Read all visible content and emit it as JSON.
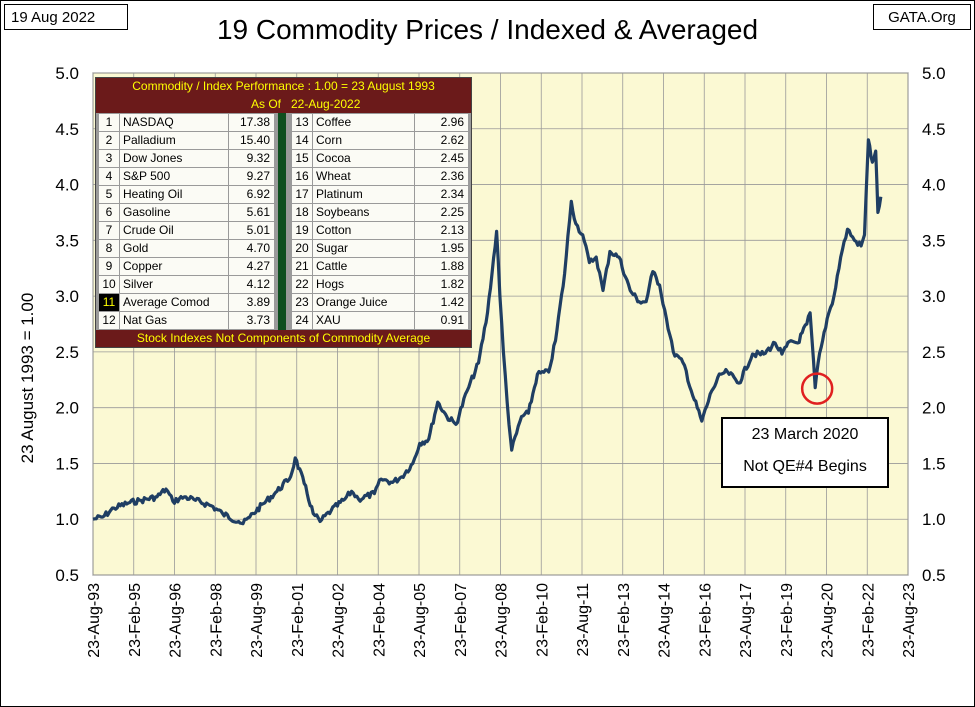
{
  "header": {
    "date_box": "19 Aug 2022",
    "site_box": "GATA.Org",
    "title": "19 Commodity Prices / Indexed & Averaged"
  },
  "colors": {
    "plot_background": "#fbf9d3",
    "line": "#1f3e63",
    "table_header_bg": "#6b1a1a",
    "table_header_text": "#ffff00",
    "separator": "#0e4f1f",
    "circle": "#e02020"
  },
  "table": {
    "header": "Commodity / Index Performance : 1.00 = 23 August 1993",
    "asof_label": "As Of",
    "asof_date": "22-Aug-2022",
    "footer": "Stock Indexes Not Components of Commodity Average",
    "rows": [
      {
        "rank": "1",
        "name": "NASDAQ",
        "value": "17.38",
        "rank2": "13",
        "name2": "Coffee",
        "value2": "2.96"
      },
      {
        "rank": "2",
        "name": "Palladium",
        "value": "15.40",
        "rank2": "14",
        "name2": "Corn",
        "value2": "2.62"
      },
      {
        "rank": "3",
        "name": "Dow Jones",
        "value": "9.32",
        "rank2": "15",
        "name2": "Cocoa",
        "value2": "2.45"
      },
      {
        "rank": "4",
        "name": "S&P 500",
        "value": "9.27",
        "rank2": "16",
        "name2": "Wheat",
        "value2": "2.36"
      },
      {
        "rank": "5",
        "name": "Heating Oil",
        "value": "6.92",
        "rank2": "17",
        "name2": "Platinum",
        "value2": "2.34"
      },
      {
        "rank": "6",
        "name": "Gasoline",
        "value": "5.61",
        "rank2": "18",
        "name2": "Soybeans",
        "value2": "2.25"
      },
      {
        "rank": "7",
        "name": "Crude Oil",
        "value": "5.01",
        "rank2": "19",
        "name2": "Cotton",
        "value2": "2.13"
      },
      {
        "rank": "8",
        "name": "Gold",
        "value": "4.70",
        "rank2": "20",
        "name2": "Sugar",
        "value2": "1.95"
      },
      {
        "rank": "9",
        "name": "Copper",
        "value": "4.27",
        "rank2": "21",
        "name2": "Cattle",
        "value2": "1.88"
      },
      {
        "rank": "10",
        "name": "Silver",
        "value": "4.12",
        "rank2": "22",
        "name2": "Hogs",
        "value2": "1.82"
      },
      {
        "rank": "11",
        "name": "Average Comod",
        "value": "3.89",
        "rank2": "23",
        "name2": "Orange Juice",
        "value2": "1.42"
      },
      {
        "rank": "12",
        "name": "Nat Gas",
        "value": "3.73",
        "rank2": "24",
        "name2": "XAU",
        "value2": "0.91"
      }
    ]
  },
  "annotation": {
    "line1": "23 March 2020",
    "line2": "Not QE#4 Begins"
  },
  "chart_data": {
    "type": "line",
    "title": "19 Commodity Prices / Indexed & Averaged",
    "ylabel": "23 August 1993 = 1.00",
    "ylim": [
      0.5,
      5.0
    ],
    "yticks": [
      "0.5",
      "1.0",
      "1.5",
      "2.0",
      "2.5",
      "3.0",
      "3.5",
      "4.0",
      "4.5",
      "5.0"
    ],
    "xlim": [
      "1993-08-23",
      "2023-08-23"
    ],
    "xticks": [
      "23-Aug-93",
      "23-Feb-95",
      "23-Aug-96",
      "23-Feb-98",
      "23-Aug-99",
      "23-Feb-01",
      "23-Aug-02",
      "23-Feb-04",
      "23-Aug-05",
      "23-Feb-07",
      "23-Aug-08",
      "23-Feb-10",
      "23-Aug-11",
      "23-Feb-13",
      "23-Aug-14",
      "23-Feb-16",
      "23-Aug-17",
      "23-Feb-19",
      "23-Aug-20",
      "23-Feb-22",
      "23-Aug-23"
    ],
    "grid": true,
    "legend": "none",
    "series": [
      {
        "x": [
          "1993-08-23",
          "1994-01-01",
          "1994-06-01",
          "1995-01-01",
          "1995-06-01",
          "1996-01-01",
          "1996-05-01",
          "1996-08-01",
          "1997-01-01",
          "1997-06-01",
          "1998-01-01",
          "1998-06-01",
          "1999-01-01",
          "1999-03-01",
          "1999-06-01",
          "1999-12-01",
          "2000-06-01",
          "2000-12-01",
          "2001-02-01",
          "2001-06-01",
          "2001-10-01",
          "2002-01-01",
          "2002-06-01",
          "2002-12-01",
          "2003-03-01",
          "2003-06-01",
          "2004-01-01",
          "2004-04-01",
          "2004-09-01",
          "2005-01-01",
          "2005-06-01",
          "2005-09-01",
          "2006-01-01",
          "2006-05-01",
          "2006-09-01",
          "2007-01-01",
          "2007-06-01",
          "2007-11-01",
          "2008-03-01",
          "2008-07-01",
          "2008-08-15",
          "2008-10-01",
          "2008-12-15",
          "2009-01-20",
          "2009-06-01",
          "2009-09-01",
          "2010-01-01",
          "2010-06-01",
          "2010-09-01",
          "2011-01-01",
          "2011-04-01",
          "2011-06-01",
          "2011-09-01",
          "2011-12-01",
          "2012-03-01",
          "2012-06-01",
          "2012-09-01",
          "2013-01-01",
          "2013-06-01",
          "2013-10-01",
          "2014-01-01",
          "2014-04-01",
          "2014-07-01",
          "2014-10-01",
          "2015-01-01",
          "2015-06-01",
          "2015-09-01",
          "2016-01-20",
          "2016-06-01",
          "2016-10-01",
          "2017-01-01",
          "2017-06-01",
          "2017-12-01",
          "2018-05-01",
          "2018-10-01",
          "2019-01-01",
          "2019-05-01",
          "2019-08-01",
          "2019-12-01",
          "2020-01-15",
          "2020-03-23",
          "2020-05-01",
          "2020-07-01",
          "2020-09-01",
          "2020-12-01",
          "2021-03-01",
          "2021-06-01",
          "2021-09-01",
          "2021-12-01",
          "2022-01-15",
          "2022-03-08",
          "2022-05-01",
          "2022-06-15",
          "2022-07-15",
          "2022-08-22"
        ],
        "values": [
          1.0,
          1.02,
          1.1,
          1.15,
          1.17,
          1.2,
          1.27,
          1.16,
          1.2,
          1.17,
          1.12,
          1.05,
          0.98,
          0.96,
          1.02,
          1.14,
          1.25,
          1.38,
          1.55,
          1.32,
          1.05,
          0.98,
          1.08,
          1.18,
          1.25,
          1.18,
          1.23,
          1.36,
          1.33,
          1.38,
          1.5,
          1.68,
          1.72,
          2.05,
          1.92,
          1.85,
          2.15,
          2.4,
          2.85,
          3.58,
          3.0,
          2.5,
          1.85,
          1.62,
          1.92,
          1.95,
          2.3,
          2.32,
          2.6,
          3.2,
          3.85,
          3.65,
          3.55,
          3.3,
          3.35,
          3.05,
          3.4,
          3.35,
          3.05,
          2.95,
          2.95,
          3.22,
          3.1,
          2.8,
          2.5,
          2.38,
          2.15,
          1.88,
          2.15,
          2.3,
          2.32,
          2.22,
          2.48,
          2.48,
          2.58,
          2.48,
          2.6,
          2.58,
          2.75,
          2.85,
          2.18,
          2.4,
          2.6,
          2.8,
          3.0,
          3.35,
          3.6,
          3.5,
          3.45,
          3.55,
          4.4,
          4.2,
          4.3,
          3.75,
          3.89
        ]
      }
    ]
  }
}
